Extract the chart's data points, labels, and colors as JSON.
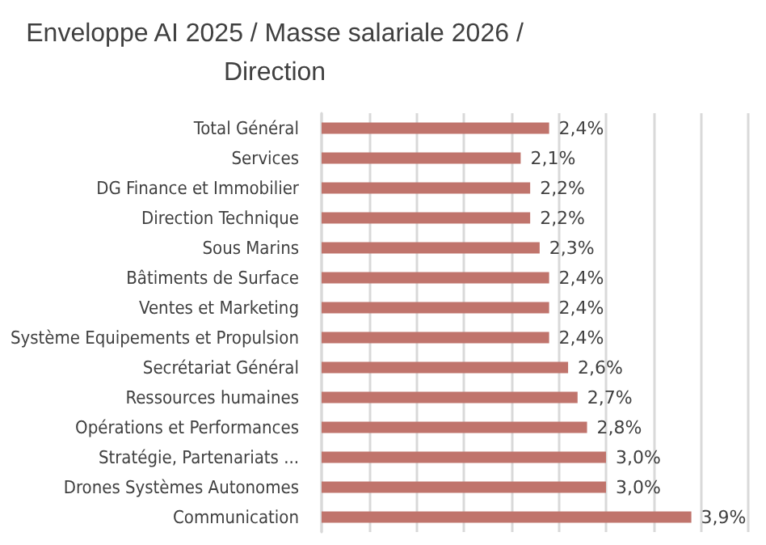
{
  "chart_data": {
    "type": "bar",
    "orientation": "horizontal",
    "title": "Enveloppe AI 2025 / Masse salariale 2026 /\nDirection",
    "categories": [
      "Total Général",
      "Services",
      "DG Finance et Immobilier",
      "Direction Technique",
      "Sous Marins",
      "Bâtiments de Surface",
      "Ventes et Marketing",
      "Système Equipements et Propulsion",
      "Secrétariat Général",
      "Ressources humaines",
      "Opérations et Performances",
      "Stratégie, Partenariats ...",
      "Drones Systèmes Autonomes",
      "Communication"
    ],
    "values": [
      2.4,
      2.1,
      2.2,
      2.2,
      2.3,
      2.4,
      2.4,
      2.4,
      2.6,
      2.7,
      2.8,
      3.0,
      3.0,
      3.9
    ],
    "value_labels": [
      "2,4%",
      "2,1%",
      "2,2%",
      "2,2%",
      "2,3%",
      "2,4%",
      "2,4%",
      "2,4%",
      "2,6%",
      "2,7%",
      "2,8%",
      "3,0%",
      "3,0%",
      "3,9%"
    ],
    "color": "#c0746c",
    "xlim": [
      0,
      4.5
    ],
    "xticks": [
      {
        "value": 0,
        "label": null
      },
      {
        "value": 0.5,
        "label": null
      },
      {
        "value": 1,
        "label": null
      },
      {
        "value": 1.5,
        "label": null
      },
      {
        "value": 2,
        "label": null
      },
      {
        "value": 2.5,
        "label": null
      },
      {
        "value": 3,
        "label": null
      },
      {
        "value": 3.5,
        "label": null
      },
      {
        "value": 4,
        "label": null
      },
      {
        "value": 4.5,
        "label": null
      }
    ],
    "tick_labels": "y",
    "grid": "x"
  }
}
